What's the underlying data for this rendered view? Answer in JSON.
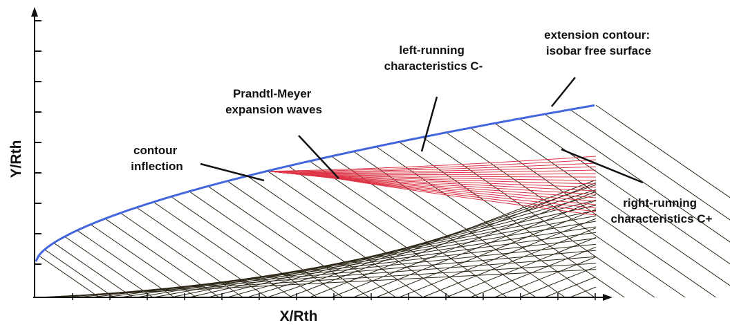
{
  "axes": {
    "x_label": "X/Rth",
    "y_label": "Y/Rth"
  },
  "annotations": {
    "contour_inflection": [
      "contour",
      "inflection"
    ],
    "prandtl_meyer": [
      "Prandtl-Meyer",
      "expansion waves"
    ],
    "left_running": [
      "left-running",
      "characteristics C-"
    ],
    "extension_contour": [
      "extension contour:",
      "isobar free surface"
    ],
    "right_running": [
      "right-running",
      "characteristics C+"
    ]
  },
  "colors": {
    "contour": "#4466dd",
    "mesh": "#2a2414",
    "expansion": "#dd3344",
    "axis": "#111111",
    "text": "#111111"
  }
}
